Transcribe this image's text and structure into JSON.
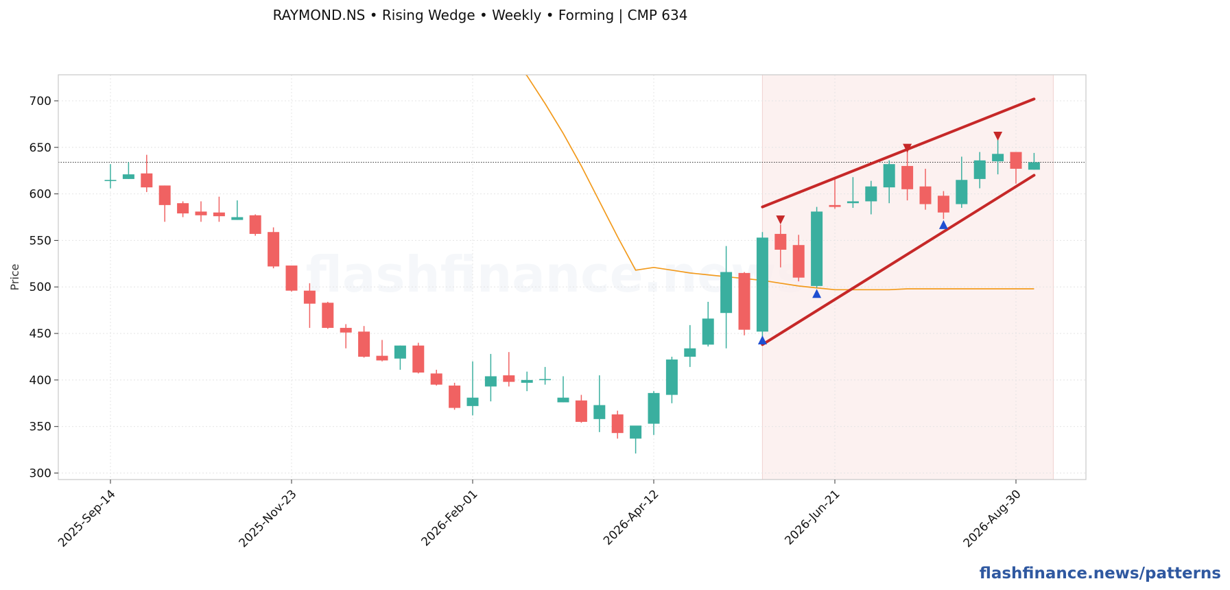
{
  "title": "RAYMOND.NS  •  Rising Wedge  •  Weekly  •  Forming  |  CMP 634",
  "watermark": "flashfinance.news",
  "brand": "flashfinance.news/patterns",
  "colors": {
    "up": "#3aaf9f",
    "down": "#f06262",
    "ma": "#f29a1c",
    "wedge": "#c62828",
    "zone": "#fbeceb",
    "marker_up": "#1f4fd1",
    "marker_down": "#c62828",
    "grid": "#e4e4e4",
    "axis": "#c8c8c8"
  },
  "chart_data": {
    "type": "candlestick",
    "title": "RAYMOND.NS  •  Rising Wedge  •  Weekly  •  Forming  |  CMP 634",
    "ylabel": "Price",
    "xlabel": "",
    "ylim": [
      293,
      728
    ],
    "yticks": [
      300,
      350,
      400,
      450,
      500,
      550,
      600,
      650,
      700
    ],
    "grid": true,
    "x_start": "2025-Sep-14",
    "x_end": "2026-Sep-06",
    "xticks": [
      "2025-Sep-14",
      "2025-Nov-23",
      "2026-Feb-01",
      "2026-Apr-12",
      "2026-Jun-21",
      "2026-Aug-30"
    ],
    "cmp_line": 634,
    "candles": [
      {
        "date": "2025-Sep-14",
        "o": 615,
        "h": 632,
        "l": 606,
        "c": 615
      },
      {
        "date": "2025-Sep-21",
        "o": 616,
        "h": 634,
        "l": 616,
        "c": 621
      },
      {
        "date": "2025-Sep-28",
        "o": 622,
        "h": 642,
        "l": 602,
        "c": 607
      },
      {
        "date": "2025-Oct-05",
        "o": 609,
        "h": 609,
        "l": 570,
        "c": 588
      },
      {
        "date": "2025-Oct-12",
        "o": 590,
        "h": 592,
        "l": 575,
        "c": 579
      },
      {
        "date": "2025-Oct-19",
        "o": 581,
        "h": 592,
        "l": 570,
        "c": 577
      },
      {
        "date": "2025-Oct-26",
        "o": 580,
        "h": 597,
        "l": 570,
        "c": 576
      },
      {
        "date": "2025-Nov-02",
        "o": 572,
        "h": 593,
        "l": 572,
        "c": 575
      },
      {
        "date": "2025-Nov-09",
        "o": 577,
        "h": 578,
        "l": 555,
        "c": 557
      },
      {
        "date": "2025-Nov-16",
        "o": 559,
        "h": 564,
        "l": 520,
        "c": 522
      },
      {
        "date": "2025-Nov-23",
        "o": 523,
        "h": 523,
        "l": 495,
        "c": 496
      },
      {
        "date": "2025-Nov-30",
        "o": 496,
        "h": 504,
        "l": 456,
        "c": 482
      },
      {
        "date": "2025-Dec-07",
        "o": 483,
        "h": 484,
        "l": 455,
        "c": 456
      },
      {
        "date": "2025-Dec-14",
        "o": 456,
        "h": 460,
        "l": 434,
        "c": 451
      },
      {
        "date": "2025-Dec-21",
        "o": 452,
        "h": 458,
        "l": 424,
        "c": 425
      },
      {
        "date": "2025-Dec-28",
        "o": 426,
        "h": 443,
        "l": 420,
        "c": 421
      },
      {
        "date": "2026-Jan-04",
        "o": 423,
        "h": 437,
        "l": 411,
        "c": 437
      },
      {
        "date": "2026-Jan-11",
        "o": 437,
        "h": 440,
        "l": 407,
        "c": 408
      },
      {
        "date": "2026-Jan-18",
        "o": 407,
        "h": 411,
        "l": 394,
        "c": 395
      },
      {
        "date": "2026-Jan-25",
        "o": 394,
        "h": 397,
        "l": 368,
        "c": 370
      },
      {
        "date": "2026-Feb-01",
        "o": 372,
        "h": 420,
        "l": 362,
        "c": 381
      },
      {
        "date": "2026-Feb-08",
        "o": 393,
        "h": 428,
        "l": 377,
        "c": 404
      },
      {
        "date": "2026-Feb-15",
        "o": 405,
        "h": 430,
        "l": 393,
        "c": 398
      },
      {
        "date": "2026-Feb-22",
        "o": 397,
        "h": 409,
        "l": 388,
        "c": 400
      },
      {
        "date": "2026-Mar-01",
        "o": 401,
        "h": 414,
        "l": 395,
        "c": 401
      },
      {
        "date": "2026-Mar-08",
        "o": 376,
        "h": 404,
        "l": 376,
        "c": 381
      },
      {
        "date": "2026-Mar-15",
        "o": 378,
        "h": 384,
        "l": 354,
        "c": 355
      },
      {
        "date": "2026-Mar-22",
        "o": 358,
        "h": 405,
        "l": 344,
        "c": 373
      },
      {
        "date": "2026-Mar-29",
        "o": 363,
        "h": 367,
        "l": 337,
        "c": 343
      },
      {
        "date": "2026-Apr-05",
        "o": 337,
        "h": 350,
        "l": 321,
        "c": 351
      },
      {
        "date": "2026-Apr-12",
        "o": 353,
        "h": 388,
        "l": 341,
        "c": 386
      },
      {
        "date": "2026-Apr-19",
        "o": 384,
        "h": 425,
        "l": 375,
        "c": 422
      },
      {
        "date": "2026-Apr-26",
        "o": 425,
        "h": 459,
        "l": 414,
        "c": 434
      },
      {
        "date": "2026-May-03",
        "o": 438,
        "h": 484,
        "l": 436,
        "c": 466
      },
      {
        "date": "2026-May-10",
        "o": 472,
        "h": 544,
        "l": 434,
        "c": 516
      },
      {
        "date": "2026-May-17",
        "o": 515,
        "h": 516,
        "l": 448,
        "c": 454
      },
      {
        "date": "2026-May-24",
        "o": 452,
        "h": 559,
        "l": 446,
        "c": 553
      },
      {
        "date": "2026-May-31",
        "o": 557,
        "h": 567,
        "l": 521,
        "c": 540
      },
      {
        "date": "2026-Jun-07",
        "o": 545,
        "h": 556,
        "l": 506,
        "c": 510
      },
      {
        "date": "2026-Jun-14",
        "o": 501,
        "h": 586,
        "l": 499,
        "c": 581
      },
      {
        "date": "2026-Jun-21",
        "o": 588,
        "h": 616,
        "l": 584,
        "c": 586
      },
      {
        "date": "2026-Jun-28",
        "o": 590,
        "h": 618,
        "l": 585,
        "c": 592
      },
      {
        "date": "2026-Jul-05",
        "o": 592,
        "h": 614,
        "l": 578,
        "c": 608
      },
      {
        "date": "2026-Jul-12",
        "o": 607,
        "h": 636,
        "l": 590,
        "c": 632
      },
      {
        "date": "2026-Jul-19",
        "o": 630,
        "h": 650,
        "l": 593,
        "c": 605
      },
      {
        "date": "2026-Jul-26",
        "o": 608,
        "h": 627,
        "l": 583,
        "c": 589
      },
      {
        "date": "2026-Aug-02",
        "o": 598,
        "h": 603,
        "l": 573,
        "c": 580
      },
      {
        "date": "2026-Aug-09",
        "o": 589,
        "h": 640,
        "l": 585,
        "c": 615
      },
      {
        "date": "2026-Aug-16",
        "o": 616,
        "h": 645,
        "l": 606,
        "c": 636
      },
      {
        "date": "2026-Aug-23",
        "o": 635,
        "h": 660,
        "l": 621,
        "c": 643
      },
      {
        "date": "2026-Aug-30",
        "o": 645,
        "h": 645,
        "l": 611,
        "c": 627
      },
      {
        "date": "2026-Sep-06",
        "o": 626,
        "h": 644,
        "l": 626,
        "c": 634
      }
    ],
    "moving_average": [
      {
        "date": "2026-Feb-15",
        "v": 745
      },
      {
        "date": "2026-Feb-22",
        "v": 727
      },
      {
        "date": "2026-Mar-01",
        "v": 697
      },
      {
        "date": "2026-Mar-08",
        "v": 665
      },
      {
        "date": "2026-Mar-15",
        "v": 630
      },
      {
        "date": "2026-Mar-22",
        "v": 592
      },
      {
        "date": "2026-Mar-29",
        "v": 554
      },
      {
        "date": "2026-Apr-05",
        "v": 518
      },
      {
        "date": "2026-Apr-12",
        "v": 521
      },
      {
        "date": "2026-Apr-19",
        "v": 518
      },
      {
        "date": "2026-Apr-26",
        "v": 515
      },
      {
        "date": "2026-May-03",
        "v": 513
      },
      {
        "date": "2026-May-10",
        "v": 511
      },
      {
        "date": "2026-May-17",
        "v": 509
      },
      {
        "date": "2026-May-24",
        "v": 507
      },
      {
        "date": "2026-May-31",
        "v": 504
      },
      {
        "date": "2026-Jun-07",
        "v": 501
      },
      {
        "date": "2026-Jun-14",
        "v": 499
      },
      {
        "date": "2026-Jun-21",
        "v": 497
      },
      {
        "date": "2026-Jun-28",
        "v": 497
      },
      {
        "date": "2026-Jul-05",
        "v": 497
      },
      {
        "date": "2026-Jul-12",
        "v": 497
      },
      {
        "date": "2026-Jul-19",
        "v": 498
      },
      {
        "date": "2026-Jul-26",
        "v": 498
      },
      {
        "date": "2026-Aug-02",
        "v": 498
      },
      {
        "date": "2026-Aug-09",
        "v": 498
      },
      {
        "date": "2026-Aug-16",
        "v": 498
      },
      {
        "date": "2026-Aug-23",
        "v": 498
      },
      {
        "date": "2026-Aug-30",
        "v": 498
      },
      {
        "date": "2026-Sep-06",
        "v": 498
      }
    ],
    "pattern_zone": {
      "from": "2026-May-24",
      "to": "2026-Sep-06"
    },
    "wedge_upper": [
      {
        "date": "2026-May-24",
        "v": 586
      },
      {
        "date": "2026-Sep-06",
        "v": 702
      }
    ],
    "wedge_lower": [
      {
        "date": "2026-May-24",
        "v": 438
      },
      {
        "date": "2026-Sep-06",
        "v": 620
      }
    ],
    "markers": [
      {
        "date": "2026-May-24",
        "v": 443,
        "dir": "up"
      },
      {
        "date": "2026-May-31",
        "v": 572,
        "dir": "down"
      },
      {
        "date": "2026-Jun-14",
        "v": 493,
        "dir": "up"
      },
      {
        "date": "2026-Jul-19",
        "v": 649,
        "dir": "down"
      },
      {
        "date": "2026-Aug-02",
        "v": 567,
        "dir": "up"
      },
      {
        "date": "2026-Aug-23",
        "v": 662,
        "dir": "down"
      }
    ]
  }
}
